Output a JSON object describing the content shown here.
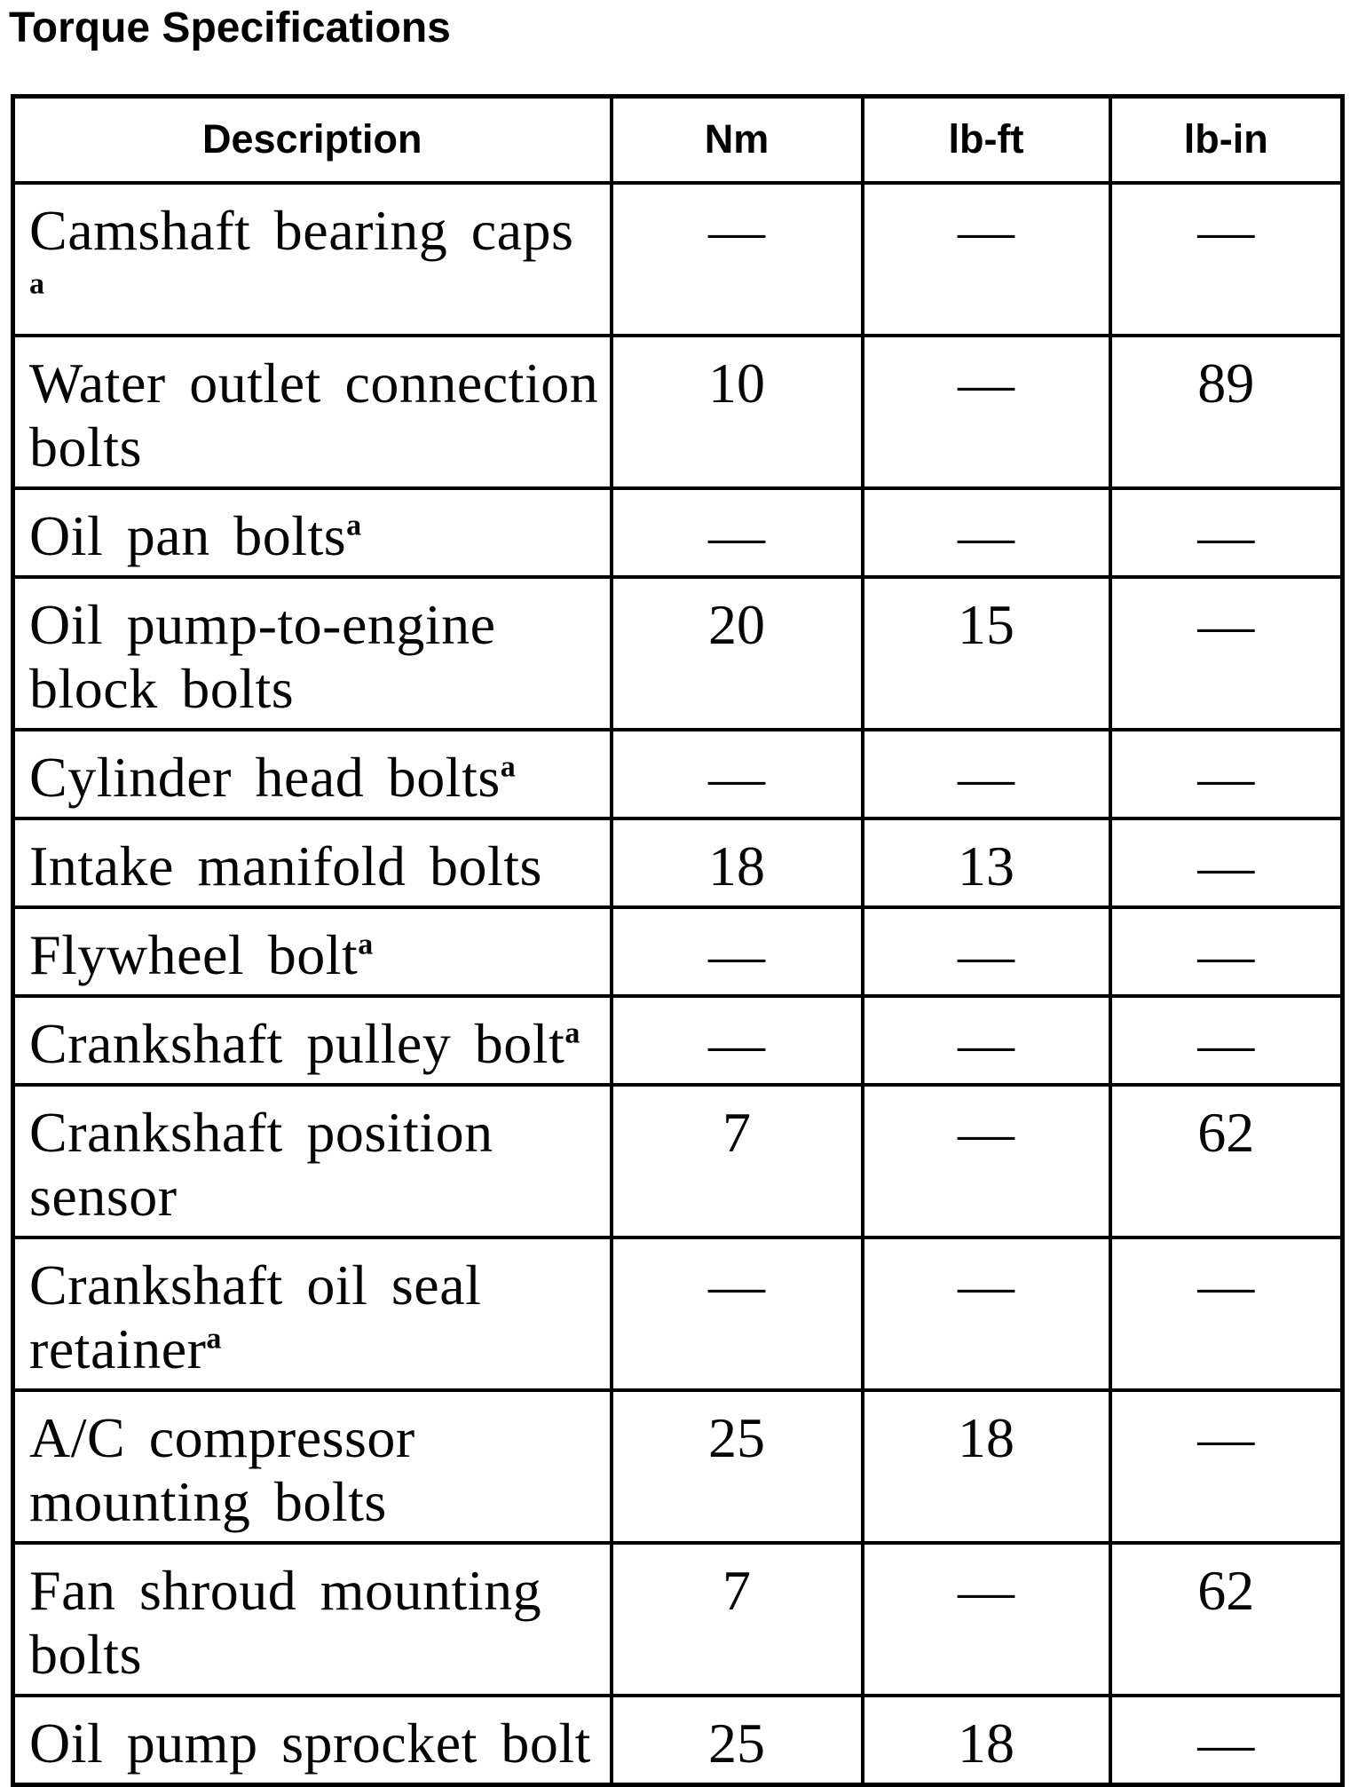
{
  "page": {
    "title": "Torque Specifications"
  },
  "table": {
    "columns": [
      "Description",
      "Nm",
      "lb-ft",
      "lb-in"
    ],
    "empty_cell_symbol": "—",
    "footnote_marker": "a",
    "rows": [
      {
        "lines": [
          "Camshaft bearing caps"
        ],
        "footnote": "a",
        "footnote_own_line": true,
        "values": [
          "—",
          "—",
          "—"
        ]
      },
      {
        "lines": [
          "Water outlet connection",
          "bolts"
        ],
        "footnote": "",
        "footnote_own_line": false,
        "values": [
          "10",
          "—",
          "89"
        ]
      },
      {
        "lines": [
          "Oil pan bolts"
        ],
        "footnote": "a",
        "footnote_own_line": false,
        "values": [
          "—",
          "—",
          "—"
        ]
      },
      {
        "lines": [
          "Oil pump-to-engine",
          "block bolts"
        ],
        "footnote": "",
        "footnote_own_line": false,
        "values": [
          "20",
          "15",
          "—"
        ]
      },
      {
        "lines": [
          "Cylinder head bolts"
        ],
        "footnote": "a",
        "footnote_own_line": false,
        "values": [
          "—",
          "—",
          "—"
        ]
      },
      {
        "lines": [
          "Intake manifold bolts"
        ],
        "footnote": "",
        "footnote_own_line": false,
        "values": [
          "18",
          "13",
          "—"
        ]
      },
      {
        "lines": [
          "Flywheel bolt"
        ],
        "footnote": "a",
        "footnote_own_line": false,
        "values": [
          "—",
          "—",
          "—"
        ]
      },
      {
        "lines": [
          "Crankshaft pulley bolt"
        ],
        "footnote": "a",
        "footnote_own_line": false,
        "values": [
          "—",
          "—",
          "—"
        ]
      },
      {
        "lines": [
          "Crankshaft position",
          "sensor"
        ],
        "footnote": "",
        "footnote_own_line": false,
        "values": [
          "7",
          "—",
          "62"
        ]
      },
      {
        "lines": [
          "Crankshaft oil seal",
          "retainer"
        ],
        "footnote": "a",
        "footnote_own_line": false,
        "values": [
          "—",
          "—",
          "—"
        ]
      },
      {
        "lines": [
          "A/C compressor",
          "mounting bolts"
        ],
        "footnote": "",
        "footnote_own_line": false,
        "values": [
          "25",
          "18",
          "—"
        ]
      },
      {
        "lines": [
          "Fan shroud mounting",
          "bolts"
        ],
        "footnote": "",
        "footnote_own_line": false,
        "values": [
          "7",
          "—",
          "62"
        ]
      },
      {
        "lines": [
          "Oil pump sprocket bolt"
        ],
        "footnote": "",
        "footnote_own_line": false,
        "values": [
          "25",
          "18",
          "—"
        ]
      }
    ]
  }
}
